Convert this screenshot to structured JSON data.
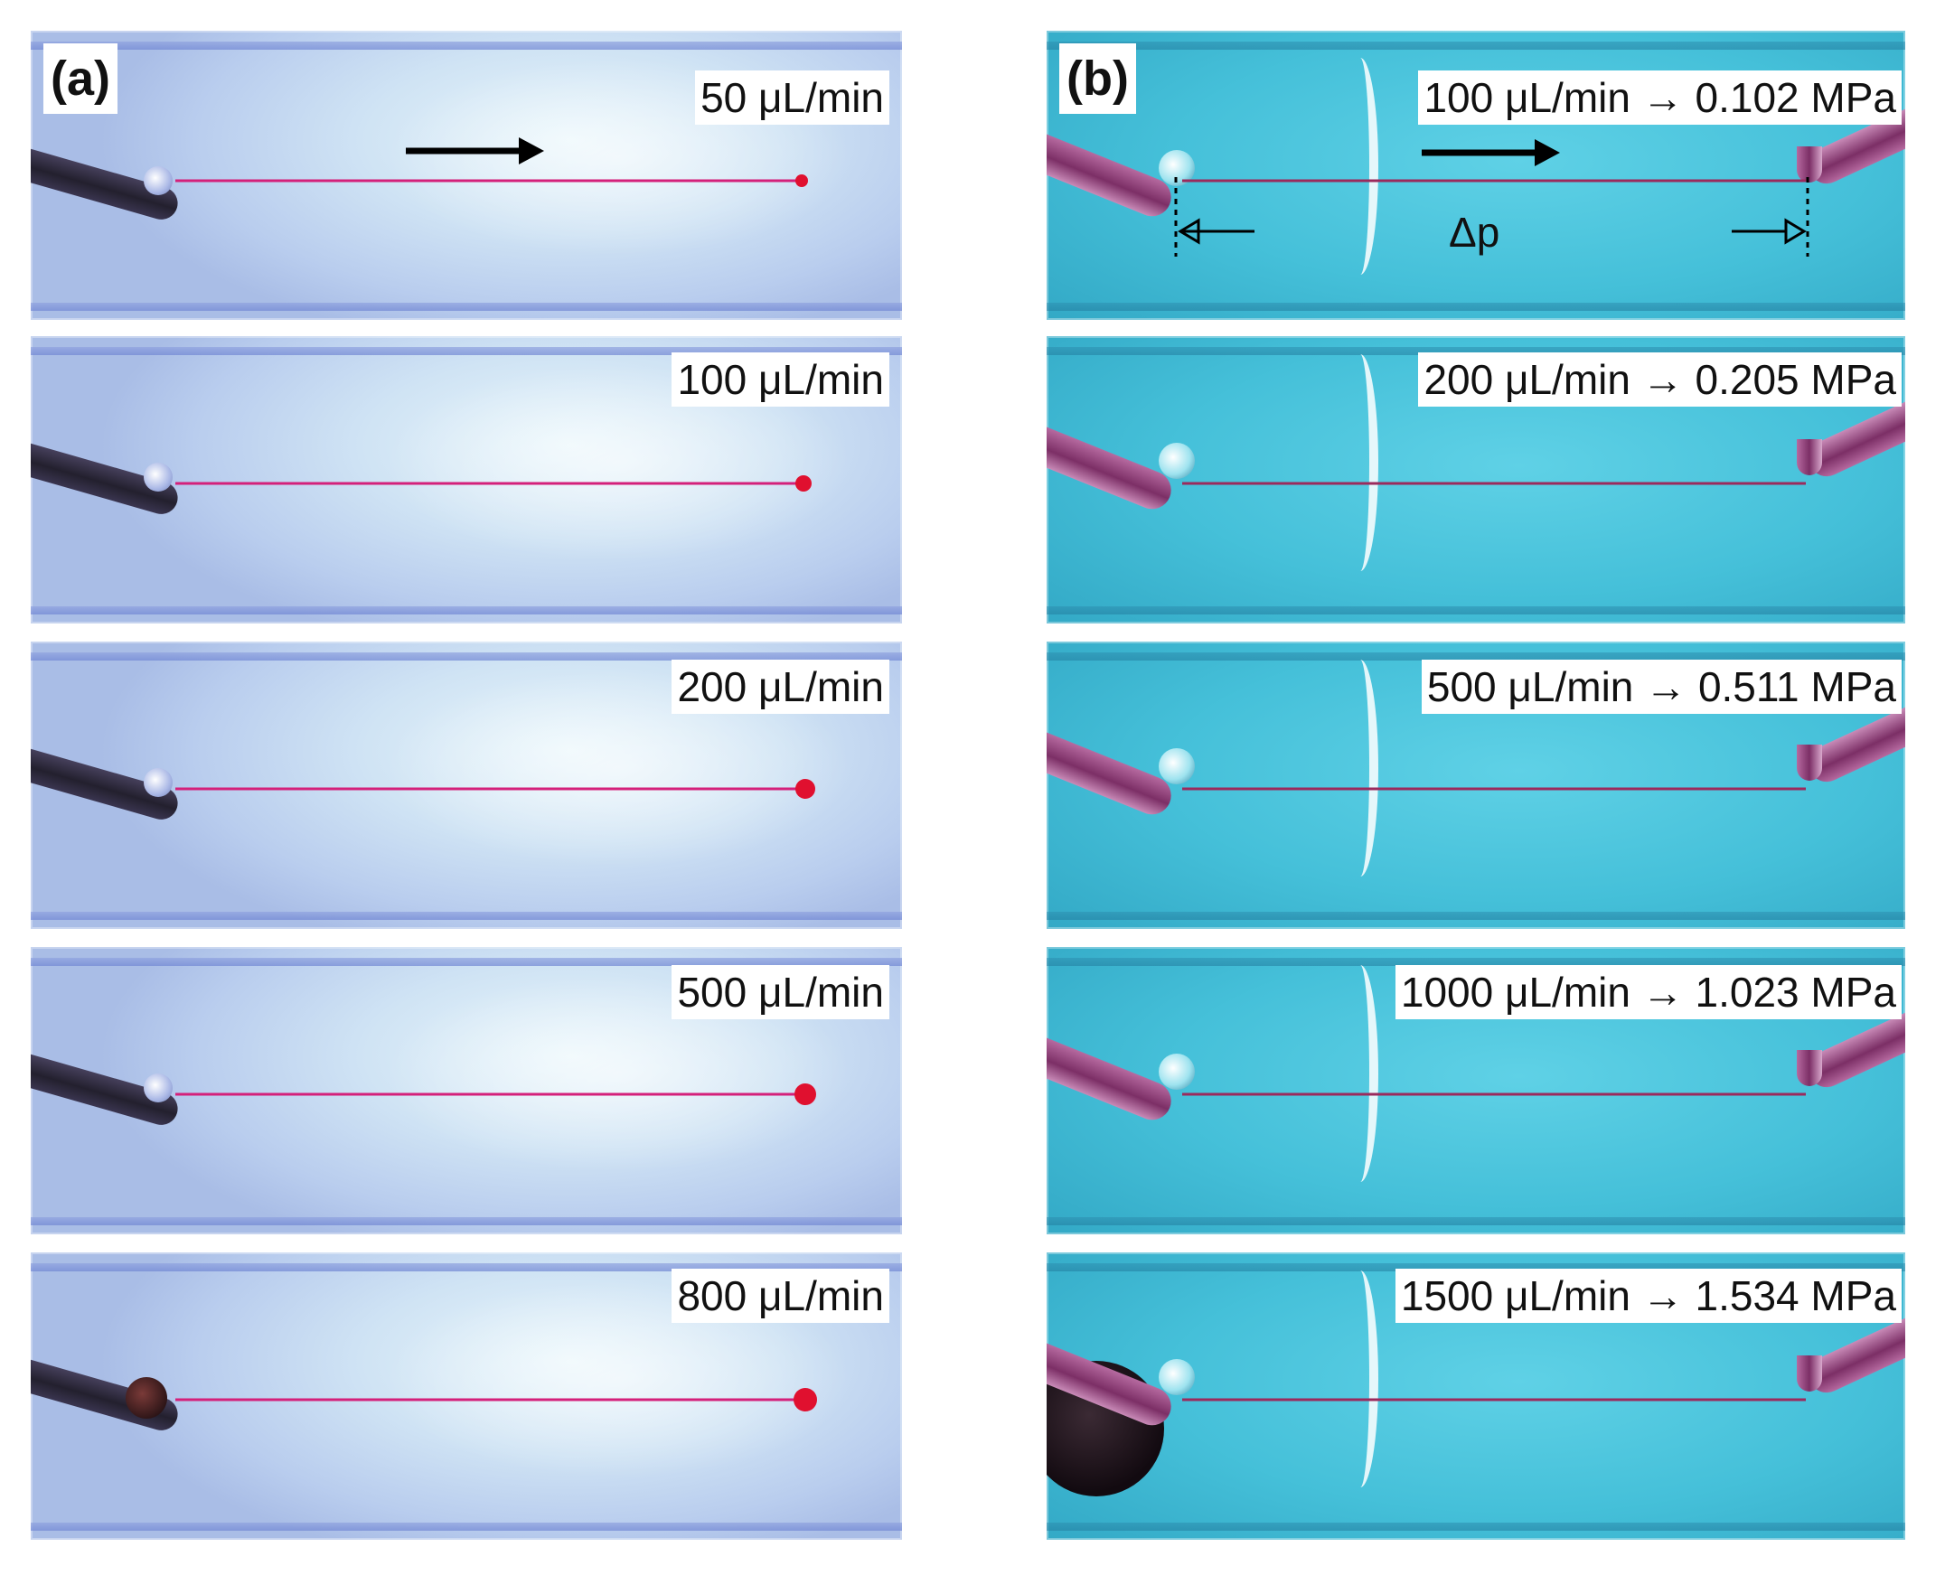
{
  "panel_a": {
    "id_label": "(a)",
    "frames": [
      {
        "label": "50 μL/min"
      },
      {
        "label": "100 μL/min"
      },
      {
        "label": "200 μL/min"
      },
      {
        "label": "500 μL/min"
      },
      {
        "label": "800 μL/min"
      }
    ]
  },
  "panel_b": {
    "id_label": "(b)",
    "pressure_symbol": "Δp",
    "frames": [
      {
        "label": "100 μL/min → 0.102 MPa"
      },
      {
        "label": "200 μL/min → 0.205 MPa"
      },
      {
        "label": "500 μL/min → 0.511 MPa"
      },
      {
        "label": "1000 μL/min → 1.023 MPa"
      },
      {
        "label": "1500 μL/min → 1.534 MPa"
      }
    ]
  },
  "colors": {
    "jet": "#d4207a",
    "droplet": "#e0102f",
    "arrow": "#000000"
  },
  "icons": [
    "flow-direction-arrow-icon",
    "pressure-marker-arrow-icon"
  ]
}
